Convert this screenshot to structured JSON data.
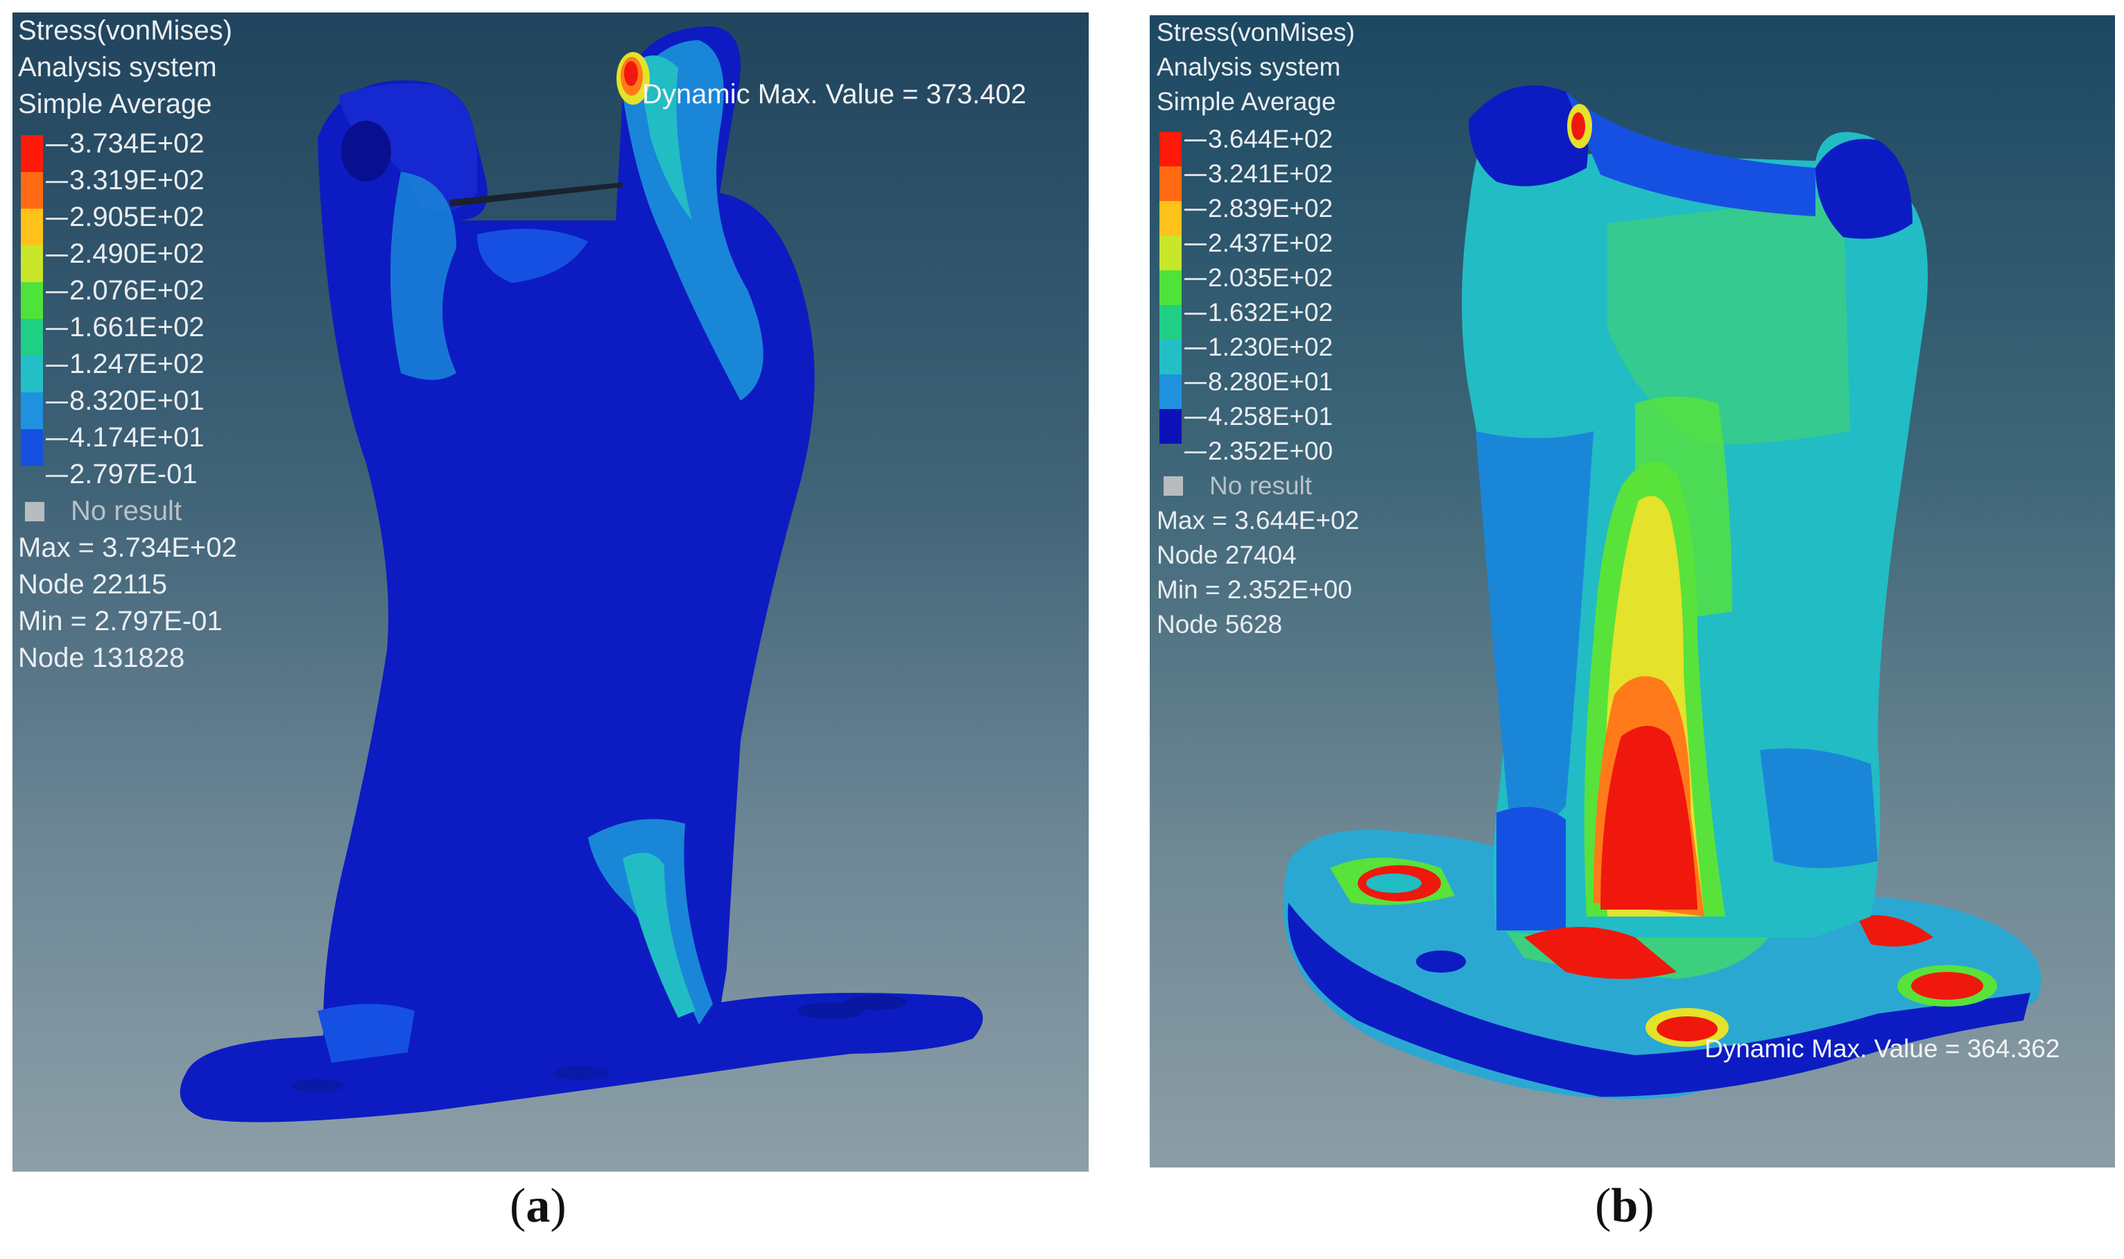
{
  "panel_a": {
    "legend": {
      "title_lines": [
        "Stress(vonMises)",
        "Analysis system",
        "Simple Average"
      ],
      "ticks": [
        "3.734E+02",
        "3.319E+02",
        "2.905E+02",
        "2.490E+02",
        "2.076E+02",
        "1.661E+02",
        "1.247E+02",
        "8.320E+01",
        "4.174E+01",
        "2.797E-01"
      ],
      "no_result": "No result",
      "stats": [
        "Max = 3.734E+02",
        "Node 22115",
        "Min = 2.797E-01",
        "Node 131828"
      ]
    },
    "dynamic_max_label": "Dynamic Max. Value =  373.402",
    "caption": "a"
  },
  "panel_b": {
    "legend": {
      "title_lines": [
        "Stress(vonMises)",
        "Analysis system",
        "Simple Average"
      ],
      "ticks": [
        "3.644E+02",
        "3.241E+02",
        "2.839E+02",
        "2.437E+02",
        "2.035E+02",
        "1.632E+02",
        "1.230E+02",
        "8.280E+01",
        "4.258E+01",
        "2.352E+00"
      ],
      "no_result": "No result",
      "stats": [
        "Max = 3.644E+02",
        "Node 27404",
        "Min = 2.352E+00",
        "Node 5628"
      ]
    },
    "dynamic_max_label": "Dynamic Max. Value =  364.362",
    "caption": "b"
  },
  "legend_colors": [
    "#ff1a0a",
    "#ff6a12",
    "#ffc21a",
    "#c8e62a",
    "#4ee33a",
    "#1fcf86",
    "#22c0c6",
    "#1e92de",
    "#1550e3",
    "#0d12b8"
  ],
  "model_colors": {
    "base": "#0c1cc2",
    "low": "#1850e0",
    "mid": "#22bcc4",
    "midgreen": "#3ccf7e",
    "green": "#58e23a",
    "yellow": "#e4e22a",
    "orange": "#ff7a1a",
    "red": "#f0180c"
  }
}
